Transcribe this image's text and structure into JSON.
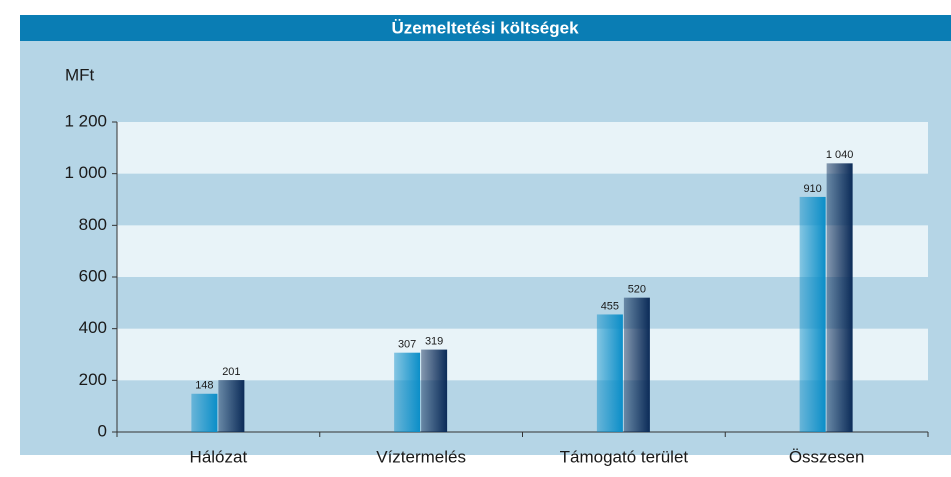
{
  "chart_data": {
    "type": "bar",
    "title": "Üzemeltetési költségek",
    "ylabel": "MFt",
    "categories": [
      "Hálózat",
      "Víztermelés",
      "Támogató terület",
      "Összesen"
    ],
    "series": [
      {
        "color": "#0b8ec8",
        "values": [
          148,
          307,
          455,
          910
        ]
      },
      {
        "color": "#0b2b58",
        "values": [
          201,
          319,
          520,
          1040
        ],
        "value_labels": [
          "201",
          "319",
          "520",
          "1 040"
        ]
      }
    ],
    "ylim": [
      0,
      1200
    ],
    "yticks": [
      0,
      200,
      400,
      600,
      800,
      {
        "value": 1000,
        "label": "1 000"
      },
      {
        "value": 1200,
        "label": "1 200"
      }
    ],
    "grid": true
  }
}
